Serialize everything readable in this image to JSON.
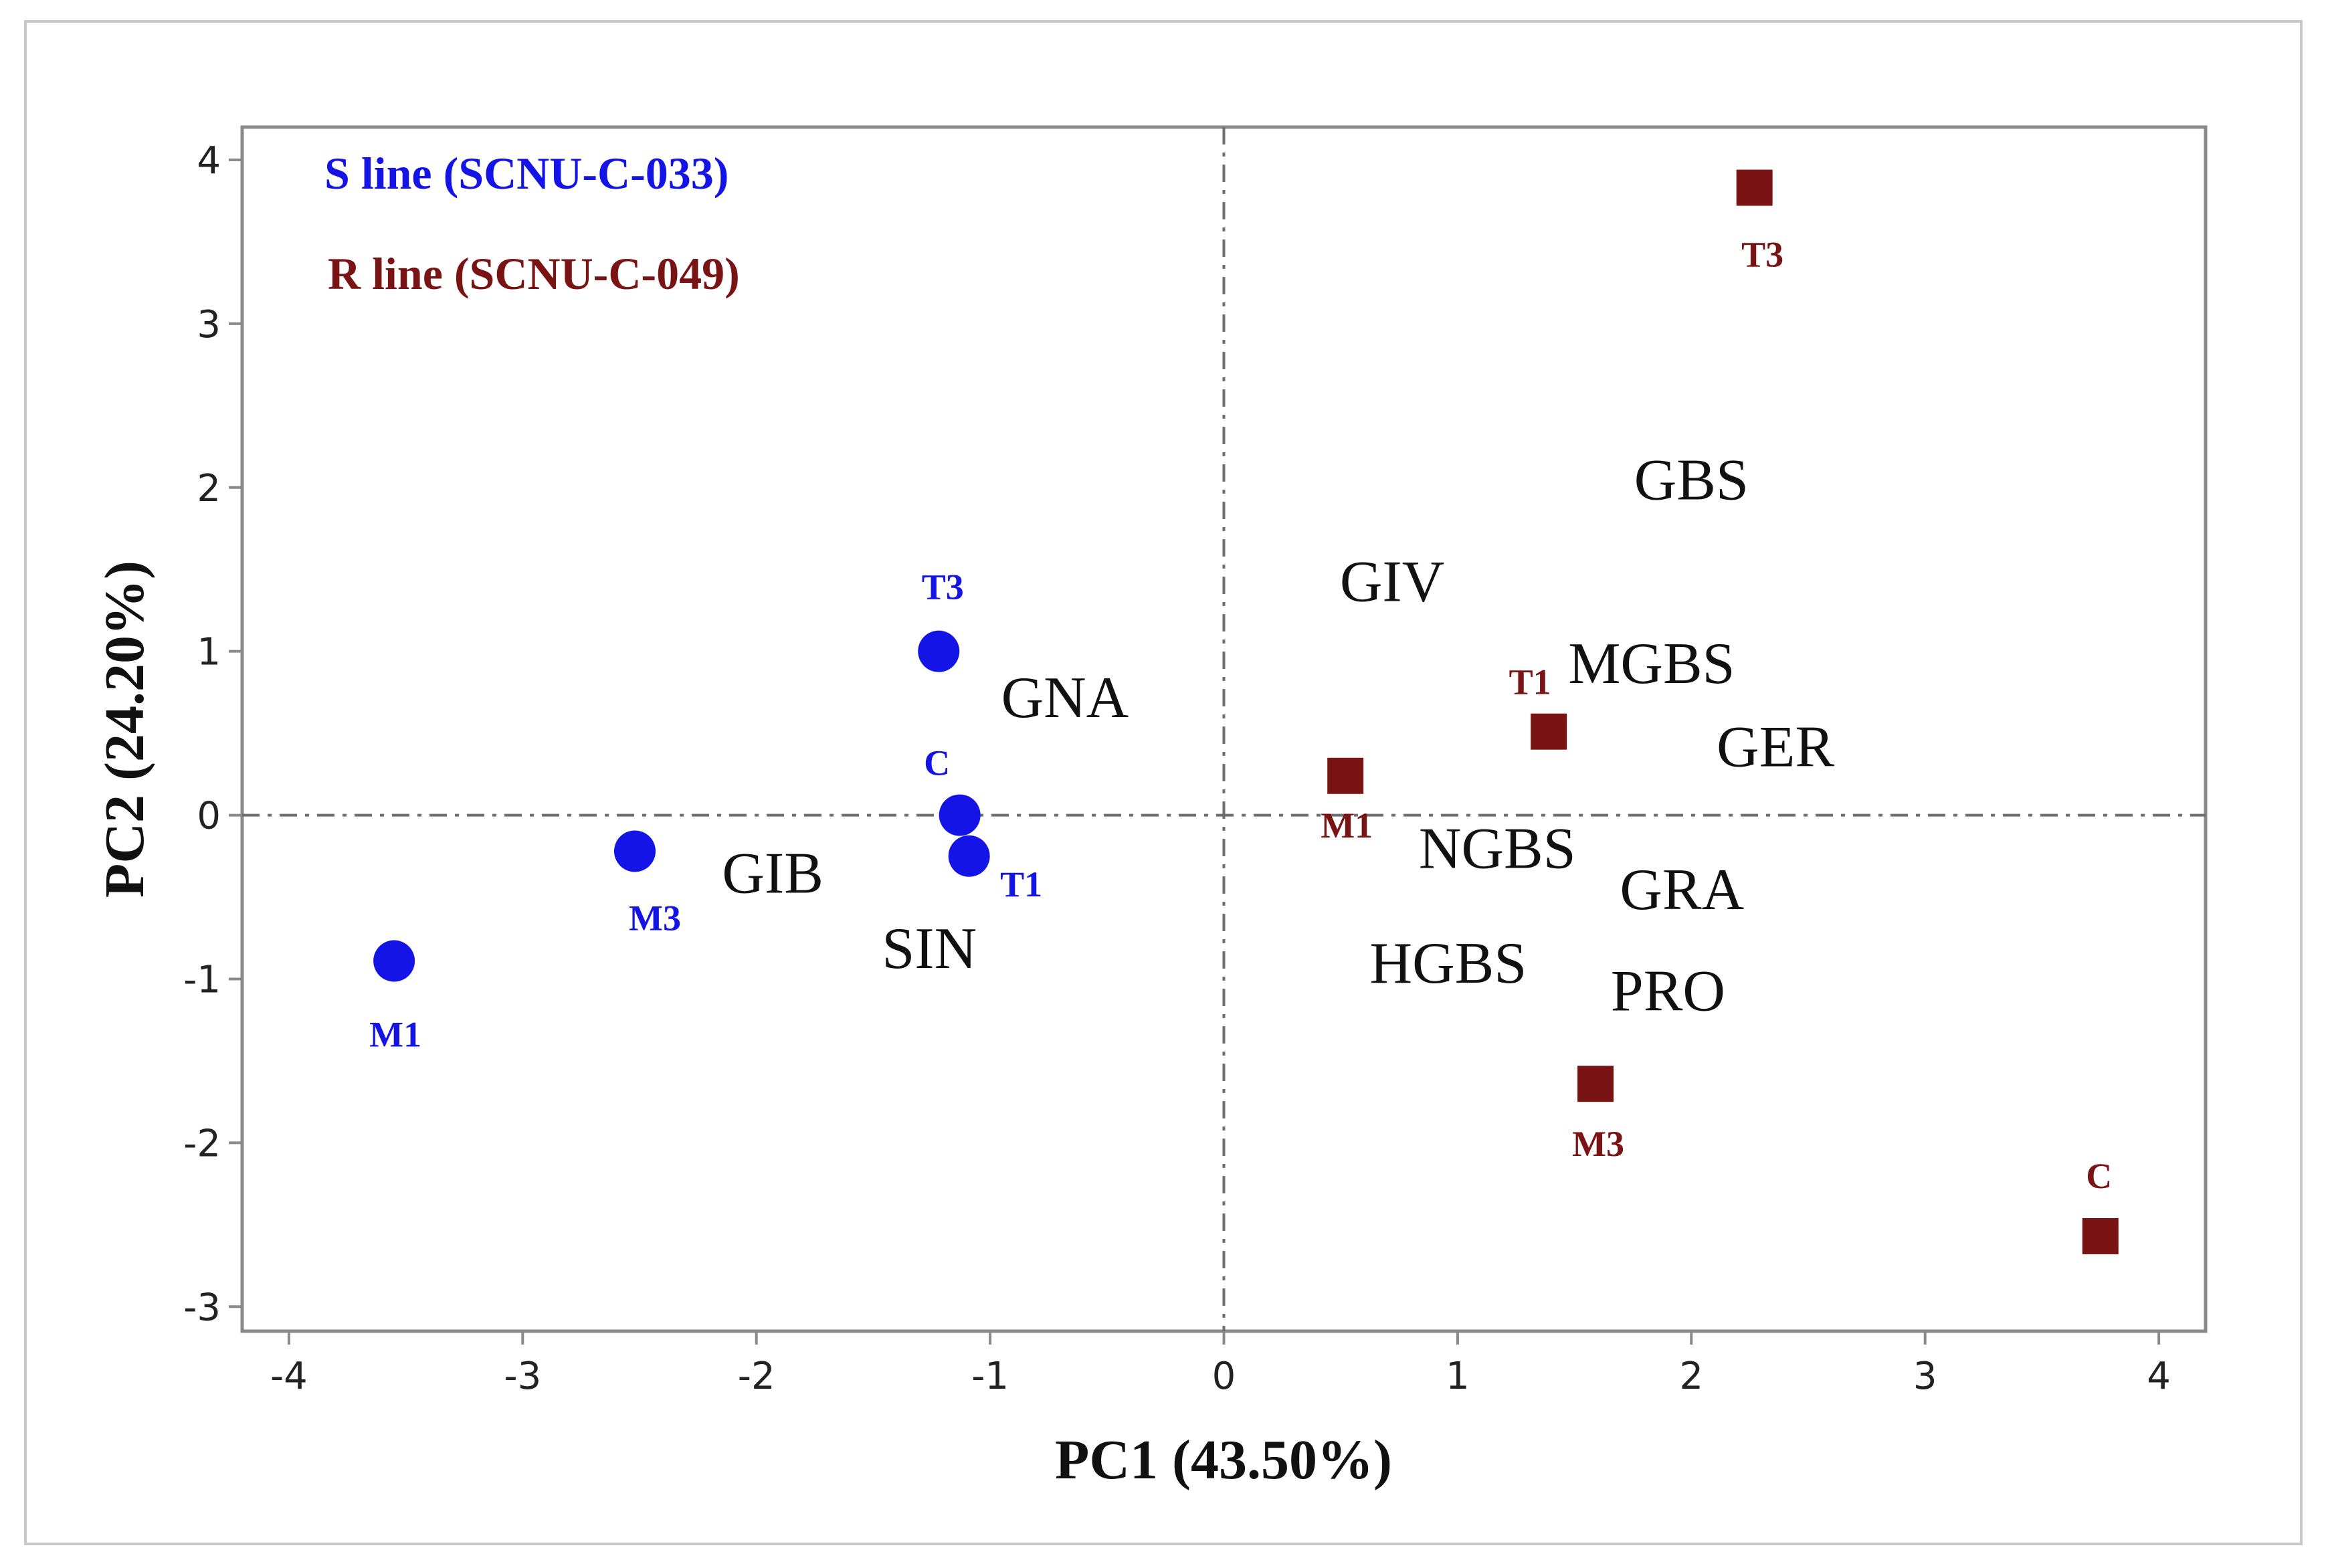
{
  "chart_data": {
    "type": "scatter",
    "title": "",
    "xlabel": "PC1 (43.50%)",
    "ylabel": "PC2 (24.20%)",
    "xlim": [
      -4.2,
      4.2
    ],
    "ylim": [
      -3.15,
      4.2
    ],
    "xticks": [
      -4,
      -3,
      -2,
      -1,
      0,
      1,
      2,
      3,
      4
    ],
    "yticks": [
      -3,
      -2,
      -1,
      0,
      1,
      2,
      3,
      4
    ],
    "xtick_labels": [
      "-4",
      "-3",
      "-2",
      "-1",
      "0",
      "1",
      "2",
      "3",
      "4"
    ],
    "ytick_labels": [
      "-3",
      "-2",
      "-1",
      "0",
      "1",
      "2",
      "3",
      "4"
    ],
    "reference_lines": {
      "x": 0,
      "y": 0
    },
    "legend": [
      {
        "text": "S line (SCNU-C-033)",
        "color": "#1414e6"
      },
      {
        "text": "R line (SCNU-C-049)",
        "color": "#7a1414"
      }
    ],
    "series": [
      {
        "name": "S line (SCNU-C-033)",
        "marker": "circle",
        "color": "#1414e6",
        "points": [
          {
            "label": "T3",
            "x": -1.22,
            "y": 1.0
          },
          {
            "label": "C",
            "x": -1.13,
            "y": 0.0
          },
          {
            "label": "T1",
            "x": -1.09,
            "y": -0.25
          },
          {
            "label": "M3",
            "x": -2.52,
            "y": -0.22
          },
          {
            "label": "M1",
            "x": -3.55,
            "y": -0.89
          }
        ]
      },
      {
        "name": "R line (SCNU-C-049)",
        "marker": "square",
        "color": "#7a1414",
        "points": [
          {
            "label": "T3",
            "x": 2.27,
            "y": 3.83
          },
          {
            "label": "T1",
            "x": 1.39,
            "y": 0.51
          },
          {
            "label": "M1",
            "x": 0.52,
            "y": 0.24
          },
          {
            "label": "M3",
            "x": 1.59,
            "y": -1.64
          },
          {
            "label": "C",
            "x": 3.75,
            "y": -2.57
          }
        ]
      }
    ],
    "variables": [
      {
        "label": "GBS",
        "x": 2.0,
        "y": 2.05
      },
      {
        "label": "GIV",
        "x": 0.72,
        "y": 1.43
      },
      {
        "label": "MGBS",
        "x": 1.83,
        "y": 0.93
      },
      {
        "label": "GER",
        "x": 2.36,
        "y": 0.42
      },
      {
        "label": "GNA",
        "x": -0.68,
        "y": 0.72
      },
      {
        "label": "NGBS",
        "x": 1.17,
        "y": -0.2
      },
      {
        "label": "GRA",
        "x": 1.96,
        "y": -0.45
      },
      {
        "label": "GIB",
        "x": -1.93,
        "y": -0.35
      },
      {
        "label": "SIN",
        "x": -1.26,
        "y": -0.81
      },
      {
        "label": "HGBS",
        "x": 0.96,
        "y": -0.9
      },
      {
        "label": "PRO",
        "x": 1.9,
        "y": -1.07
      }
    ]
  }
}
